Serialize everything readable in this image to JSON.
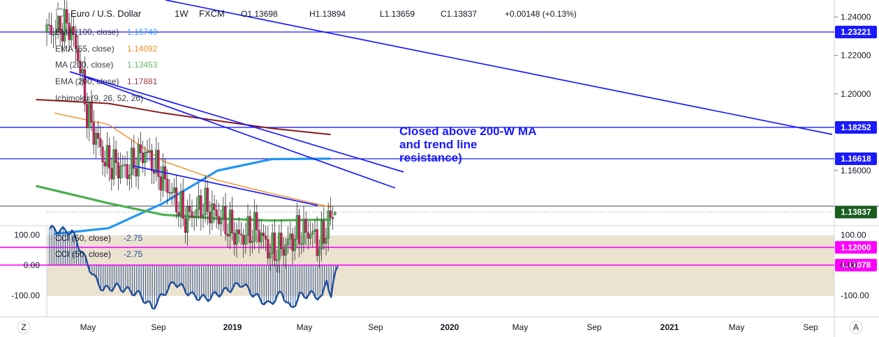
{
  "header": {
    "symbol": "Euro / U.S. Dollar",
    "interval": "1W",
    "exchange": "FXCM",
    "open": "O1.13698",
    "high": "H1.13894",
    "low": "L1.13659",
    "close": "C1.13837",
    "change": "+0.00148 (+0.13%)"
  },
  "indicators": [
    {
      "label": "EMA (100, close)",
      "value": "1.16740",
      "color": "#2196f3"
    },
    {
      "label": "EMA (55, close)",
      "value": "1.14092",
      "color": "#f57c00"
    },
    {
      "label": "MA (200, close)",
      "value": "1.13453",
      "color": "#4caf50"
    },
    {
      "label": "EMA (200, close)",
      "value": "1.17881",
      "color": "#8b1a1a"
    },
    {
      "label": "Ichimoku (9, 26, 52, 26)",
      "value": "",
      "color": "#2196f3"
    }
  ],
  "annotation": [
    "Closed above 200-W MA",
    "and trend line",
    "resistance)"
  ],
  "price_axis": {
    "ticks": [
      "1.24000",
      "1.22000",
      "1.20000",
      "1.16000"
    ],
    "tags": [
      {
        "label": "1.23221",
        "value": 1.23221,
        "color": "#1a1aff"
      },
      {
        "label": "1.18252",
        "value": 1.18252,
        "color": "#1a1aff"
      },
      {
        "label": "1.16618",
        "value": 1.16618,
        "color": "#1a1aff"
      },
      {
        "label": "1.13837",
        "value": 1.13837,
        "color": "#1b5e20"
      },
      {
        "label": "1.12000",
        "value": 1.12,
        "color": "#ff00ff"
      },
      {
        "label": "1.11078",
        "value": 1.11078,
        "color": "#ff00ff"
      }
    ]
  },
  "cci_panel": {
    "legend": [
      {
        "label": "CCI (50, close)",
        "value": "-2.75"
      },
      {
        "label": "CCI (50, close)",
        "value": "-2.75"
      }
    ],
    "ticks_left": [
      "100.00",
      "0.00",
      "-100.00"
    ],
    "ticks_right": [
      "100.00",
      "0.00",
      "-100.00"
    ]
  },
  "time_axis": {
    "labels": [
      "May",
      "Sep",
      "2019",
      "May",
      "Sep",
      "2020",
      "May",
      "Sep",
      "2021",
      "May",
      "Sep"
    ]
  },
  "corner_buttons": {
    "left": "Z",
    "right": "A"
  },
  "colors": {
    "bull": "#4caf50",
    "bear": "#d81b60",
    "trend": "#1a1aff",
    "support": "#ff00ff",
    "cci": "#1f4e9c",
    "cci_band": "#ece2d0"
  },
  "chart_data": {
    "type": "candlestick",
    "title": "Euro / U.S. Dollar 1W FXCM",
    "x_unit": "week",
    "x_range": [
      "2018-02",
      "2021-10"
    ],
    "ylim": [
      1.095,
      1.25
    ],
    "series": [
      {
        "name": "EMA (100, close)",
        "last": 1.1674,
        "x": [
          "2018-03",
          "2018-06",
          "2018-09",
          "2018-12",
          "2019-03",
          "2019-06"
        ],
        "y": [
          1.127,
          1.13,
          1.143,
          1.16,
          1.166,
          1.1662
        ]
      },
      {
        "name": "EMA (55, close)",
        "last": 1.14092,
        "x": [
          "2018-03",
          "2018-06",
          "2018-09",
          "2018-12",
          "2019-03",
          "2019-06"
        ],
        "y": [
          1.19,
          1.184,
          1.165,
          1.155,
          1.148,
          1.141
        ]
      },
      {
        "name": "MA (200, close)",
        "last": 1.13453,
        "x": [
          "2018-02",
          "2018-06",
          "2018-09",
          "2018-12",
          "2019-03",
          "2019-06"
        ],
        "y": [
          1.152,
          1.143,
          1.137,
          1.135,
          1.134,
          1.1345
        ]
      },
      {
        "name": "EMA (200, close)",
        "last": 1.17881,
        "x": [
          "2018-02",
          "2018-06",
          "2018-09",
          "2018-12",
          "2019-03",
          "2019-06"
        ],
        "y": [
          1.197,
          1.195,
          1.19,
          1.186,
          1.182,
          1.1788
        ]
      }
    ],
    "levels": [
      1.23221,
      1.18252,
      1.16618,
      1.12,
      1.11078
    ],
    "last_close": 1.13837,
    "cci": {
      "name": "CCI (50, close)",
      "last": -2.75,
      "ylim": [
        -160,
        130
      ],
      "bands": [
        100,
        -100
      ]
    }
  }
}
